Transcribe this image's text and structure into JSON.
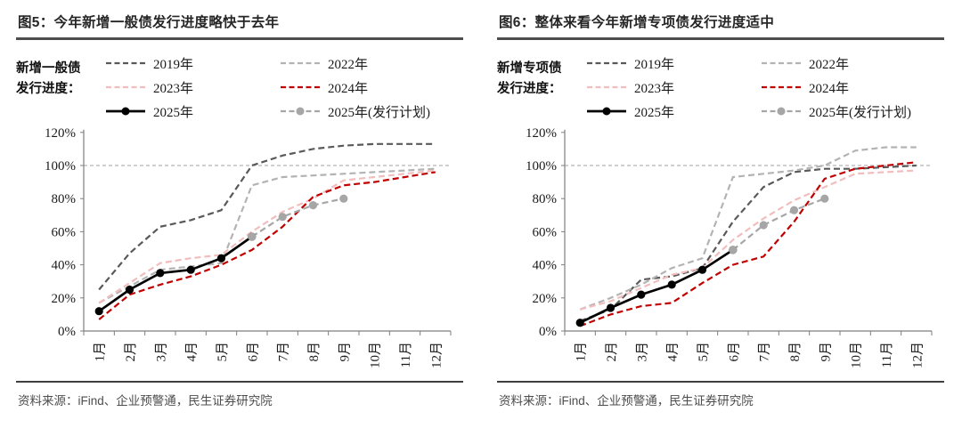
{
  "panels": [
    {
      "title": "图5：今年新增一般债发行进度略快于去年",
      "legend_label": [
        "新增一般债",
        "发行进度："
      ],
      "source": "资料来源：iFind、企业预警通，民生证券研究院",
      "chart_data": {
        "type": "line",
        "x_labels": [
          "1月",
          "2月",
          "3月",
          "4月",
          "5月",
          "6月",
          "7月",
          "8月",
          "9月",
          "10月",
          "11月",
          "12月"
        ],
        "y_tick_labels": [
          "0%",
          "20%",
          "40%",
          "60%",
          "80%",
          "100%",
          "120%"
        ],
        "ylim": [
          0,
          120
        ],
        "ytick_step": 20,
        "ref_line": 100,
        "ref_line_color": "#b3b3b3",
        "axis_color": "#7f7f7f",
        "grid": false,
        "legend_position": "top",
        "series": [
          {
            "name": "2019年",
            "color": "#595959",
            "dash": true,
            "marker": false,
            "values": [
              25,
              47,
              63,
              67,
              73,
              100,
              106,
              110,
              112,
              113,
              113,
              113
            ]
          },
          {
            "name": "2022年",
            "color": "#b3b3b3",
            "dash": true,
            "marker": false,
            "values": [
              17,
              27,
              37,
              39,
              41,
              88,
              93,
              94,
              95,
              96,
              97,
              98
            ]
          },
          {
            "name": "2023年",
            "color": "#f2bdbd",
            "dash": true,
            "marker": false,
            "values": [
              17,
              29,
              41,
              44,
              46,
              60,
              72,
              80,
              91,
              93,
              95,
              97
            ]
          },
          {
            "name": "2024年",
            "color": "#c00000",
            "dash": true,
            "marker": false,
            "values": [
              7,
              22,
              28,
              33,
              40,
              49,
              63,
              81,
              88,
              90,
              93,
              96
            ]
          },
          {
            "name": "2025年",
            "color": "#000000",
            "dash": false,
            "marker": true,
            "values": [
              12,
              25,
              35,
              37,
              44,
              57,
              null,
              null,
              null,
              null,
              null,
              null
            ]
          },
          {
            "name": "2025年(发行计划)",
            "color": "#a6a6a6",
            "dash": true,
            "marker": true,
            "values": [
              null,
              null,
              null,
              null,
              null,
              57,
              69,
              76,
              80,
              null,
              null,
              null
            ]
          }
        ]
      }
    },
    {
      "title": "图6：整体来看今年新增专项债发行进度适中",
      "legend_label": [
        "新增专项债",
        "发行进度："
      ],
      "source": "资料来源：iFind、企业预警通，民生证券研究院",
      "chart_data": {
        "type": "line",
        "x_labels": [
          "1月",
          "2月",
          "3月",
          "4月",
          "5月",
          "6月",
          "7月",
          "8月",
          "9月",
          "10月",
          "11月",
          "12月"
        ],
        "y_tick_labels": [
          "0%",
          "20%",
          "40%",
          "60%",
          "80%",
          "100%",
          "120%"
        ],
        "ylim": [
          0,
          120
        ],
        "ytick_step": 20,
        "ref_line": 100,
        "ref_line_color": "#b3b3b3",
        "axis_color": "#7f7f7f",
        "grid": false,
        "legend_position": "top",
        "series": [
          {
            "name": "2019年",
            "color": "#595959",
            "dash": true,
            "marker": false,
            "values": [
              6,
              13,
              31,
              33,
              38,
              66,
              87,
              96,
              98,
              98,
              99,
              100
            ]
          },
          {
            "name": "2022年",
            "color": "#b3b3b3",
            "dash": true,
            "marker": false,
            "values": [
              13,
              20,
              28,
              38,
              44,
              93,
              95,
              97,
              100,
              109,
              111,
              111
            ]
          },
          {
            "name": "2023年",
            "color": "#f2bdbd",
            "dash": true,
            "marker": false,
            "values": [
              13,
              18,
              26,
              34,
              38,
              55,
              68,
              79,
              87,
              95,
              96,
              97
            ]
          },
          {
            "name": "2024年",
            "color": "#c00000",
            "dash": true,
            "marker": false,
            "values": [
              3,
              10,
              15,
              17,
              29,
              40,
              45,
              66,
              92,
              98,
              100,
              102
            ]
          },
          {
            "name": "2025年",
            "color": "#000000",
            "dash": false,
            "marker": true,
            "values": [
              5,
              14,
              22,
              28,
              37,
              49,
              null,
              null,
              null,
              null,
              null,
              null
            ]
          },
          {
            "name": "2025年(发行计划)",
            "color": "#a6a6a6",
            "dash": true,
            "marker": true,
            "values": [
              null,
              null,
              null,
              null,
              null,
              49,
              64,
              73,
              80,
              null,
              null,
              null
            ]
          }
        ]
      }
    }
  ]
}
